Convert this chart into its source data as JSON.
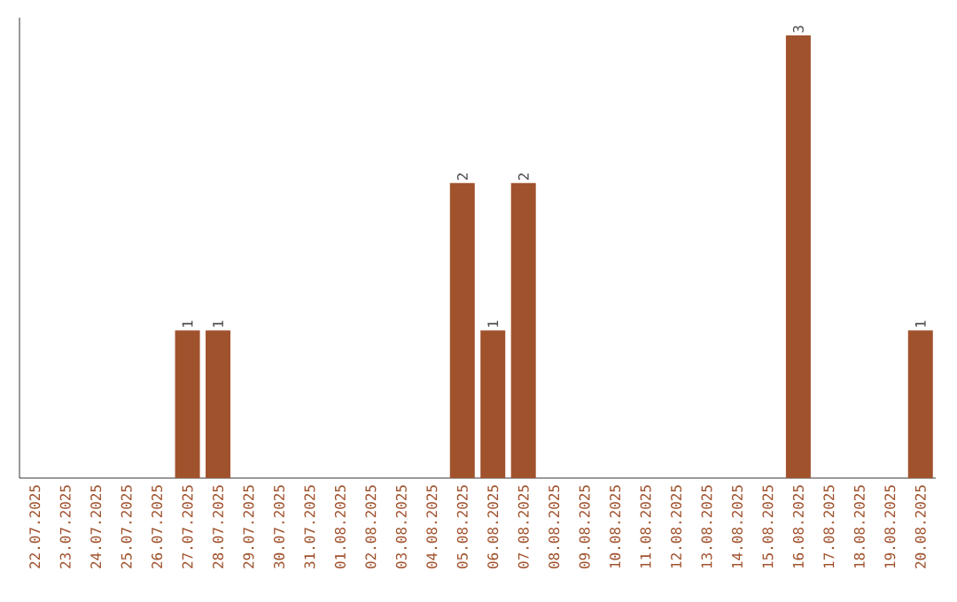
{
  "chart_data": {
    "type": "bar",
    "categories": [
      "22.07.2025",
      "23.07.2025",
      "24.07.2025",
      "25.07.2025",
      "26.07.2025",
      "27.07.2025",
      "28.07.2025",
      "29.07.2025",
      "30.07.2025",
      "31.07.2025",
      "01.08.2025",
      "02.08.2025",
      "03.08.2025",
      "04.08.2025",
      "05.08.2025",
      "06.08.2025",
      "07.08.2025",
      "08.08.2025",
      "09.08.2025",
      "10.08.2025",
      "11.08.2025",
      "12.08.2025",
      "13.08.2025",
      "14.08.2025",
      "15.08.2025",
      "16.08.2025",
      "17.08.2025",
      "18.08.2025",
      "19.08.2025",
      "20.08.2025"
    ],
    "values": [
      0,
      0,
      0,
      0,
      0,
      1,
      1,
      0,
      0,
      0,
      0,
      0,
      0,
      0,
      2,
      1,
      2,
      0,
      0,
      0,
      0,
      0,
      0,
      0,
      0,
      3,
      0,
      0,
      0,
      1
    ],
    "value_labels": [
      null,
      null,
      null,
      null,
      null,
      "1",
      "1",
      null,
      null,
      null,
      null,
      null,
      null,
      null,
      "2",
      "1",
      "2",
      null,
      null,
      null,
      null,
      null,
      null,
      null,
      null,
      "3",
      null,
      null,
      null,
      "1"
    ],
    "color": "#a0522d",
    "grid": false
  }
}
